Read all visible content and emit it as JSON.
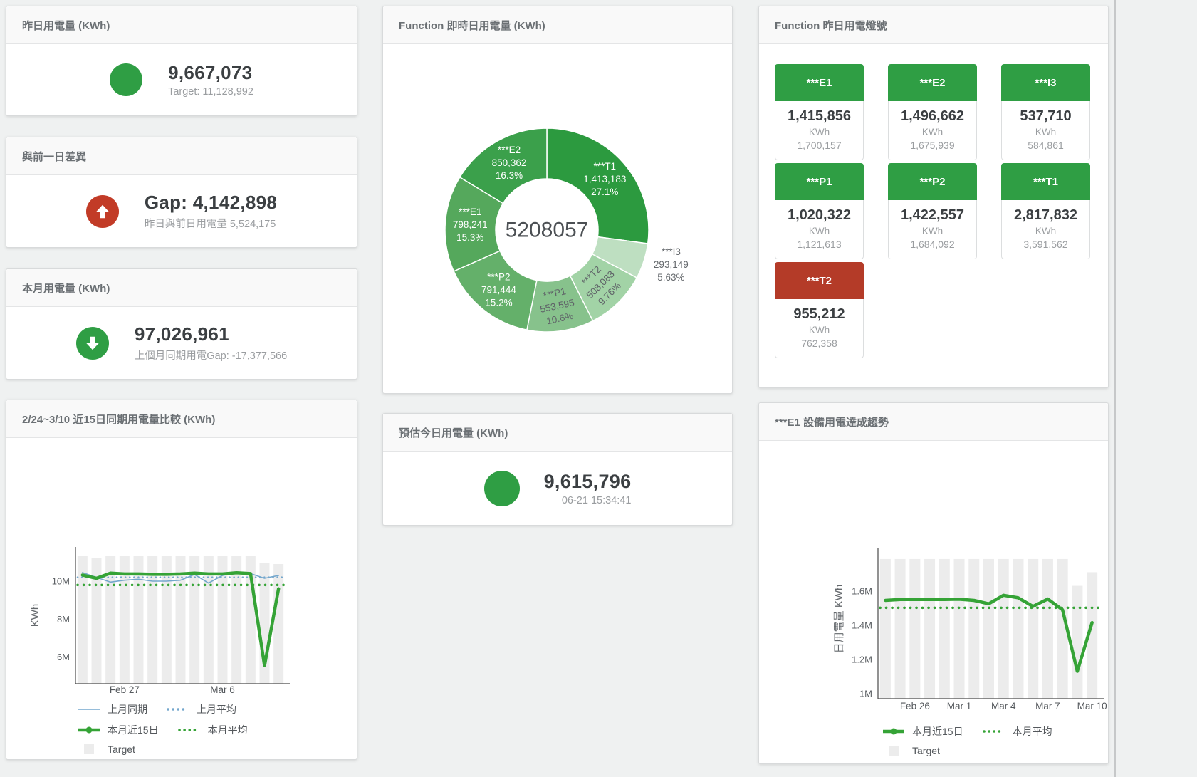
{
  "colors": {
    "green": "#2f9e44",
    "red": "#c23b27",
    "tile_red": "#b43b28",
    "bar_gray": "#ececec",
    "line_green": "#35a336",
    "line_blue": "#74a7cd"
  },
  "panels": {
    "yesterday": {
      "title": "昨日用電量 (KWh)",
      "value": "9,667,073",
      "sub": "Target: 11,128,992",
      "indicator": "green"
    },
    "gap": {
      "title": "與前一日差異",
      "value": "Gap: 4,142,898",
      "sub": "昨日與前日用電量 5,524,175",
      "indicator": "red-up"
    },
    "month": {
      "title": "本月用電量 (KWh)",
      "value": "97,026,961",
      "sub": "上個月同期用電Gap: -17,377,566",
      "indicator": "green-down"
    },
    "estimate": {
      "title": "預估今日用電量 (KWh)",
      "value": "9,615,796",
      "sub": "06-21 15:34:41",
      "indicator": "green"
    },
    "realtime": {
      "title": "Function 即時日用電量 (KWh)"
    },
    "lights": {
      "title": "Function 昨日用電燈號",
      "unit": "KWh",
      "tiles": [
        {
          "label": "***E1",
          "value": "1,415,856",
          "target": "1,700,157",
          "status": "green"
        },
        {
          "label": "***E2",
          "value": "1,496,662",
          "target": "1,675,939",
          "status": "green"
        },
        {
          "label": "***I3",
          "value": "537,710",
          "target": "584,861",
          "status": "green"
        },
        {
          "label": "***P1",
          "value": "1,020,322",
          "target": "1,121,613",
          "status": "green"
        },
        {
          "label": "***P2",
          "value": "1,422,557",
          "target": "1,684,092",
          "status": "green"
        },
        {
          "label": "***T1",
          "value": "2,817,832",
          "target": "3,591,562",
          "status": "green"
        },
        {
          "label": "***T2",
          "value": "955,212",
          "target": "762,358",
          "status": "red"
        }
      ]
    },
    "compare": {
      "title": "2/24~3/10 近15日同期用電量比較 (KWh)"
    },
    "trend": {
      "title": "***E1 設備用電達成趨勢"
    }
  },
  "chart_data": [
    {
      "type": "pie",
      "title": "Function 即時日用電量 (KWh)",
      "center_label": "5208057",
      "slices": [
        {
          "name": "***T1",
          "display": "1,413,183",
          "pct": "27.1%",
          "value": 27.1,
          "color": "#2c9a3f",
          "label_color": "#ffffff"
        },
        {
          "name": "***I3",
          "display": "293,149",
          "pct": "5.63%",
          "value": 5.63,
          "color": "#bedfc1",
          "label_color": "#64686c",
          "outside": true
        },
        {
          "name": "***T2",
          "display": "508,083",
          "pct": "9.76%",
          "value": 9.76,
          "color": "#a2d3a6",
          "label_color": "#5f6368",
          "rotate": -45
        },
        {
          "name": "***P1",
          "display": "553,595",
          "pct": "10.6%",
          "value": 10.6,
          "color": "#87c28c",
          "label_color": "#5f6368",
          "rotate": -12
        },
        {
          "name": "***P2",
          "display": "791,444",
          "pct": "15.2%",
          "value": 15.2,
          "color": "#64b06a",
          "label_color": "#ffffff"
        },
        {
          "name": "***E1",
          "display": "798,241",
          "pct": "15.3%",
          "value": 15.3,
          "color": "#55a85c",
          "label_color": "#ffffff"
        },
        {
          "name": "***E2",
          "display": "850,362",
          "pct": "16.3%",
          "value": 16.3,
          "color": "#3ba04b",
          "label_color": "#ffffff"
        }
      ]
    },
    {
      "type": "line",
      "title": "2/24~3/10 近15日同期用電量比較 (KWh)",
      "ylabel": "KWh",
      "ylim": [
        4.6,
        11.5
      ],
      "yticks": [
        6,
        8,
        10
      ],
      "ytick_labels": [
        "6M",
        "8M",
        "10M"
      ],
      "x_count": 15,
      "xtick_labels": [
        {
          "label": "Feb 27",
          "index": 3
        },
        {
          "label": "Mar 6",
          "index": 10
        }
      ],
      "bars": {
        "name": "Target",
        "color": "#ececec",
        "values": [
          11.35,
          11.2,
          11.35,
          11.35,
          11.35,
          11.35,
          11.35,
          11.35,
          11.35,
          11.35,
          11.35,
          11.35,
          11.35,
          10.95,
          10.9
        ]
      },
      "series": [
        {
          "name": "上月同期",
          "style": "solid",
          "width": 1.6,
          "color": "#74a7cd",
          "values": [
            10.45,
            10.2,
            9.95,
            10.05,
            10.1,
            10.0,
            10.0,
            10.05,
            10.35,
            9.9,
            10.3,
            10.45,
            10.4,
            10.15,
            10.3
          ]
        },
        {
          "name": "上月平均",
          "style": "dotted",
          "width": 2.5,
          "color": "#74a7cd",
          "const": 10.2
        },
        {
          "name": "本月近15日",
          "style": "solid",
          "width": 4.5,
          "color": "#35a336",
          "values": [
            10.32,
            10.15,
            10.42,
            10.38,
            10.38,
            10.36,
            10.36,
            10.38,
            10.42,
            10.38,
            10.38,
            10.44,
            10.4,
            5.55,
            9.6
          ]
        },
        {
          "name": "本月平均",
          "style": "dotted",
          "width": 3.5,
          "color": "#35a336",
          "const": 9.8
        }
      ],
      "legend_rows": [
        [
          "上月同期",
          "上月平均"
        ],
        [
          "本月近15日",
          "本月平均"
        ],
        [
          "Target"
        ]
      ]
    },
    {
      "type": "line",
      "title": "***E1 設備用電達成趨勢",
      "ylabel": "日用電量 KWh",
      "ylim": [
        0.97,
        1.82
      ],
      "yticks": [
        1,
        1.2,
        1.4,
        1.6
      ],
      "ytick_labels": [
        "1M",
        "1.2M",
        "1.4M",
        "1.6M"
      ],
      "x_count": 15,
      "xtick_labels": [
        {
          "label": "Feb 26",
          "index": 2
        },
        {
          "label": "Mar 1",
          "index": 5
        },
        {
          "label": "Mar 4",
          "index": 8
        },
        {
          "label": "Mar 7",
          "index": 11
        },
        {
          "label": "Mar 10",
          "index": 14
        }
      ],
      "bars": {
        "name": "Target",
        "color": "#ececec",
        "values": [
          1.787,
          1.787,
          1.787,
          1.787,
          1.787,
          1.787,
          1.787,
          1.787,
          1.787,
          1.787,
          1.787,
          1.787,
          1.787,
          1.63,
          1.71
        ]
      },
      "series": [
        {
          "name": "本月近15日",
          "style": "solid",
          "width": 4.5,
          "color": "#35a336",
          "values": [
            1.545,
            1.55,
            1.55,
            1.55,
            1.55,
            1.552,
            1.545,
            1.525,
            1.575,
            1.56,
            1.51,
            1.553,
            1.49,
            1.13,
            1.415
          ]
        },
        {
          "name": "本月平均",
          "style": "dotted",
          "width": 3.5,
          "color": "#35a336",
          "const": 1.502
        }
      ],
      "legend_rows": [
        [
          "本月近15日",
          "本月平均"
        ],
        [
          "Target"
        ]
      ]
    }
  ]
}
